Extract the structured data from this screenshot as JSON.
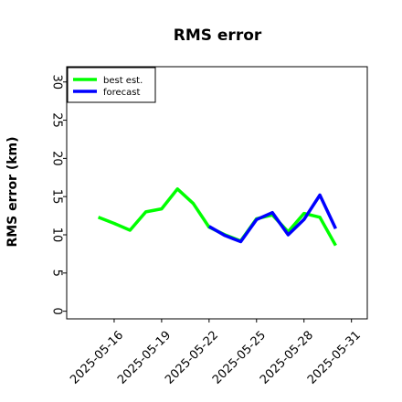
{
  "chart_data": {
    "type": "line",
    "title": "RMS error",
    "xlabel": "",
    "ylabel": "RMS error (km)",
    "ylim": [
      -1,
      32
    ],
    "yticks": [
      0,
      5,
      10,
      15,
      20,
      25,
      30
    ],
    "xlim": [
      "2025-05-13",
      "2025-06-01"
    ],
    "xticks": [
      {
        "label": "2025-05-16",
        "color": "#000000"
      },
      {
        "label": "2025-05-19",
        "color": "#000000"
      },
      {
        "label": "2025-05-22",
        "color": "#228b22"
      },
      {
        "label": "2025-05-25",
        "color": "#000000"
      },
      {
        "label": "2025-05-28",
        "color": "#000000"
      },
      {
        "label": "2025-05-31",
        "color": "#000000"
      }
    ],
    "legend_position": "top-left",
    "grid": false,
    "series": [
      {
        "name": "forecast",
        "color": "#0000ff",
        "x": [
          "2025-05-22",
          "2025-05-23",
          "2025-05-24",
          "2025-05-25",
          "2025-05-26",
          "2025-05-27",
          "2025-05-28",
          "2025-05-29",
          "2025-05-30"
        ],
        "y": [
          11.1,
          9.9,
          9.1,
          12.0,
          12.9,
          10.0,
          12.0,
          15.2,
          10.8
        ]
      },
      {
        "name": "best est.",
        "color": "#00ff00",
        "x": [
          "2025-05-15",
          "2025-05-16",
          "2025-05-17",
          "2025-05-18",
          "2025-05-19",
          "2025-05-20",
          "2025-05-21",
          "2025-05-22",
          "2025-05-23",
          "2025-05-24",
          "2025-05-25",
          "2025-05-26",
          "2025-05-27",
          "2025-05-28",
          "2025-05-29",
          "2025-05-30"
        ],
        "y": [
          12.3,
          11.5,
          10.6,
          13.0,
          13.4,
          16.0,
          14.1,
          11.0,
          10.0,
          9.2,
          12.1,
          12.6,
          10.4,
          12.8,
          12.3,
          8.6
        ]
      }
    ]
  }
}
